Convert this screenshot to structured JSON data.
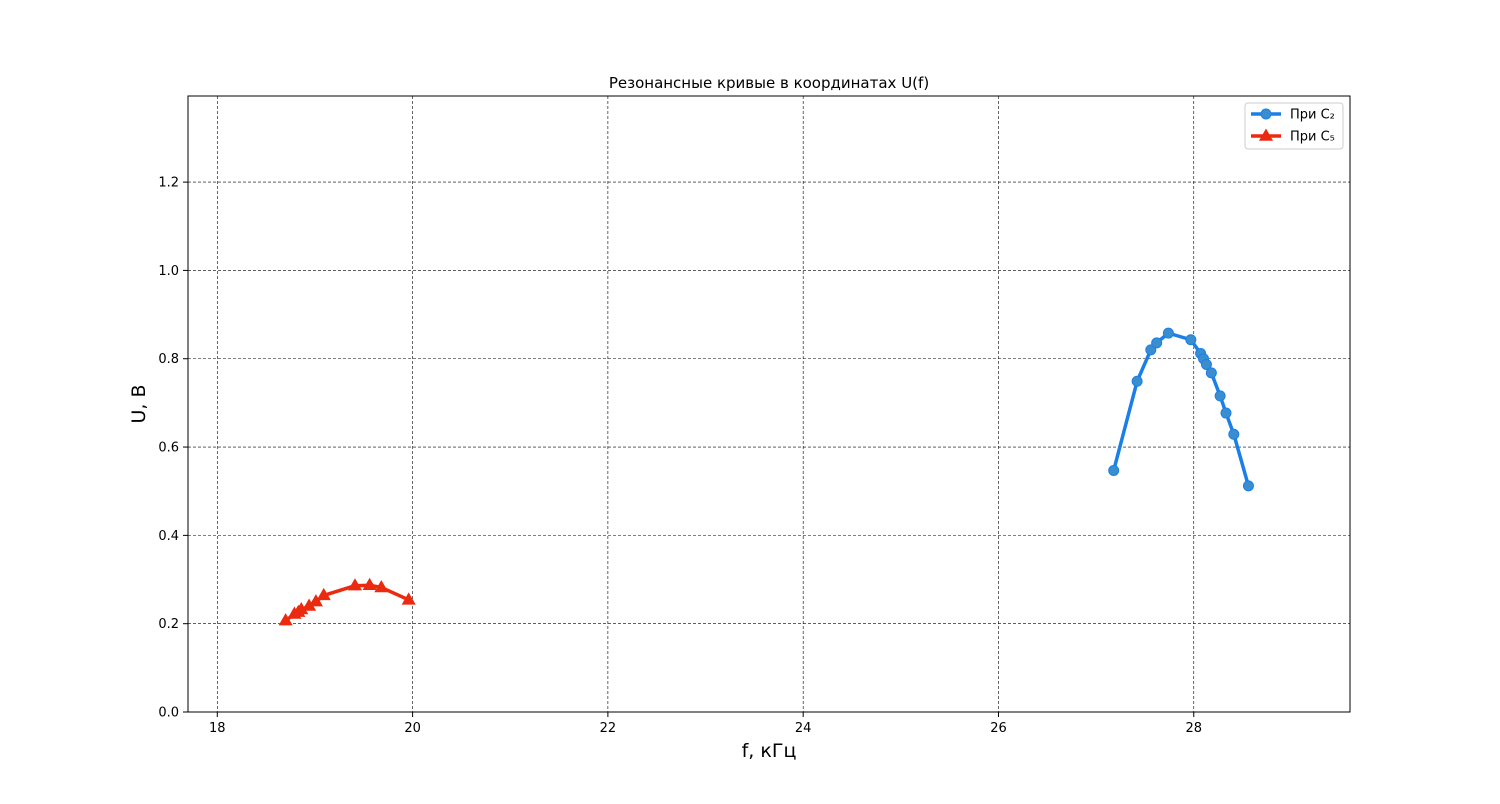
{
  "chart_data": {
    "type": "line",
    "title": "Резонансные кривые в координатах U(f)",
    "xlabel": "f, кГц",
    "ylabel": "U, В",
    "xlim": [
      17.7,
      29.6
    ],
    "ylim": [
      0.0,
      1.395
    ],
    "x_ticks": [
      18,
      20,
      22,
      24,
      26,
      28
    ],
    "x_tick_labels": [
      "18",
      "20",
      "22",
      "24",
      "26",
      "28"
    ],
    "y_ticks": [
      0.0,
      0.2,
      0.4,
      0.6,
      0.8,
      1.0,
      1.2
    ],
    "y_tick_labels": [
      "0.0",
      "0.2",
      "0.4",
      "0.6",
      "0.8",
      "1.0",
      "1.2"
    ],
    "grid": true,
    "legend_position": "top-right",
    "series": [
      {
        "name": "При C₂",
        "color": "#1a80e8",
        "marker": "circle",
        "marker_color": "#3a8ed0",
        "x": [
          27.18,
          27.42,
          27.56,
          27.62,
          27.74,
          27.97,
          28.07,
          28.1,
          28.13,
          28.18,
          28.27,
          28.33,
          28.41,
          28.56
        ],
        "y": [
          0.547,
          0.749,
          0.82,
          0.836,
          0.858,
          0.843,
          0.812,
          0.8,
          0.787,
          0.768,
          0.716,
          0.677,
          0.629,
          0.512
        ]
      },
      {
        "name": "При C₅",
        "color": "#ec2a0f",
        "marker": "triangle",
        "marker_color": "#ec2a0f",
        "x": [
          18.7,
          18.79,
          18.83,
          18.86,
          18.94,
          19.01,
          19.09,
          19.41,
          19.56,
          19.68,
          19.96
        ],
        "y": [
          0.207,
          0.222,
          0.226,
          0.232,
          0.24,
          0.25,
          0.264,
          0.286,
          0.287,
          0.282,
          0.254
        ]
      }
    ]
  }
}
